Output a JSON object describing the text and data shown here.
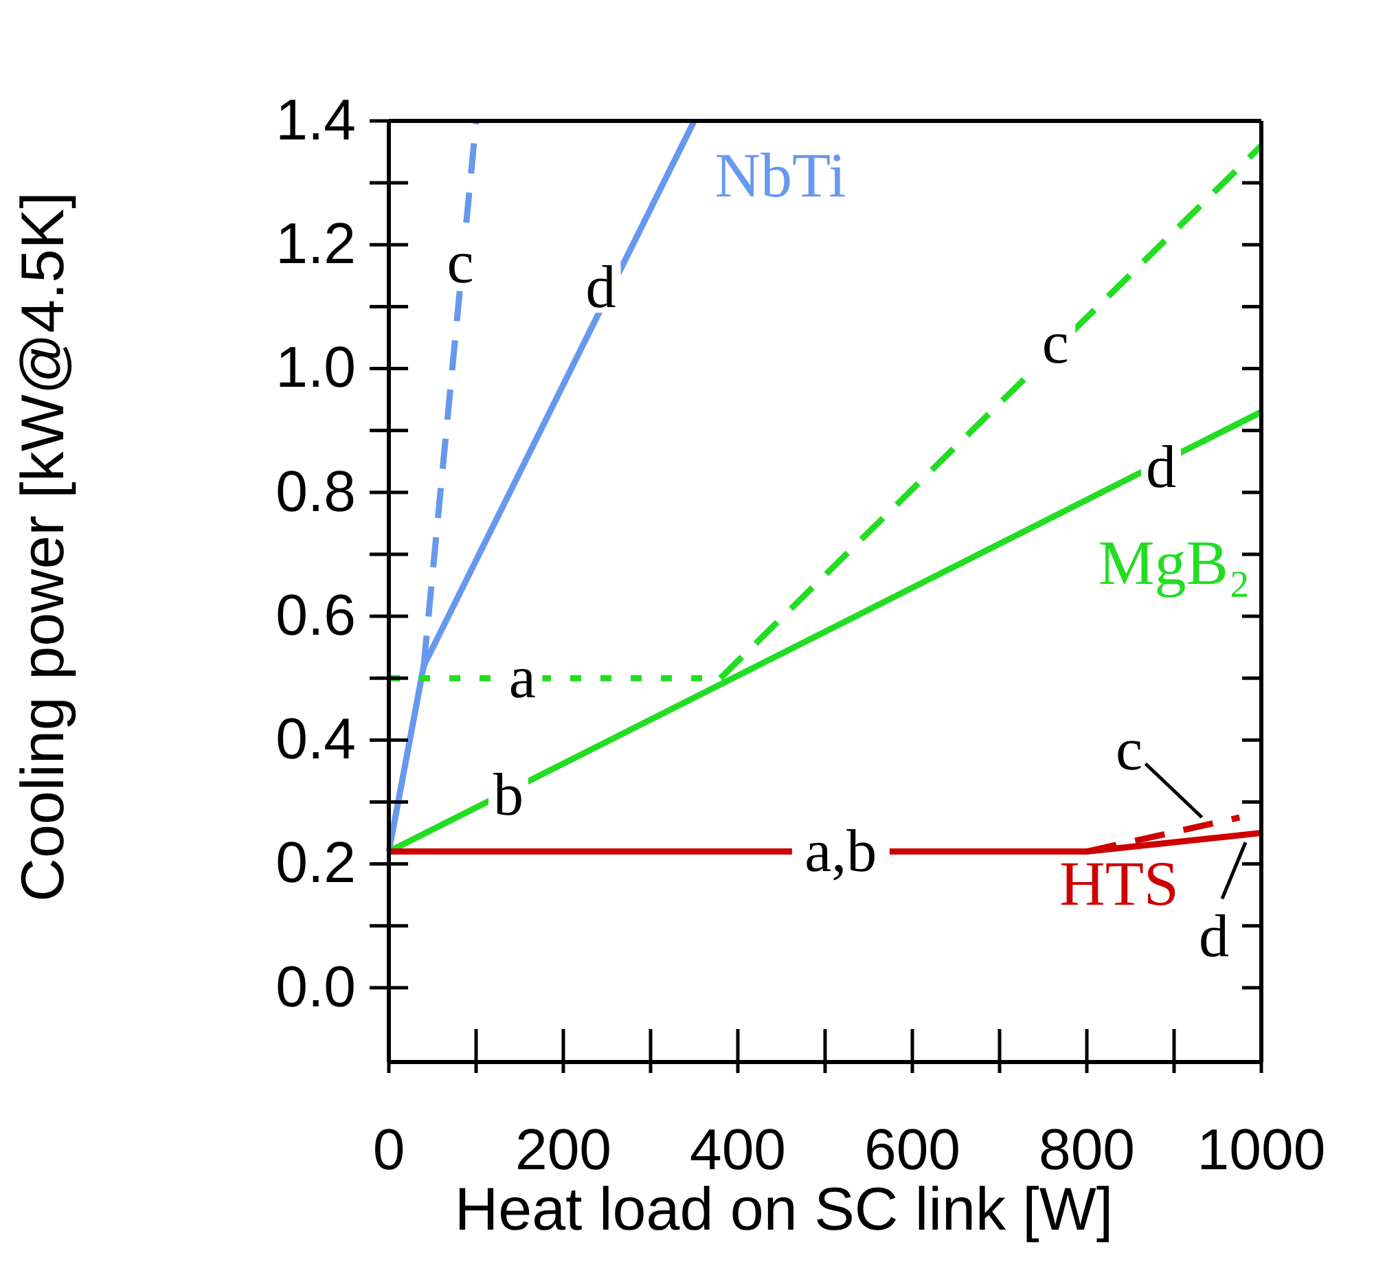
{
  "chart_data": {
    "type": "line",
    "xlabel": "Heat load on SC link [W]",
    "ylabel": "Cooling power [kW@4.5K]",
    "xlim": [
      0,
      1000
    ],
    "ylim": [
      -0.12,
      1.4
    ],
    "xticks": [
      0,
      {
        "value": 100,
        "label": null
      },
      200,
      {
        "value": 300,
        "label": null
      },
      400,
      {
        "value": 500,
        "label": null
      },
      600,
      {
        "value": 700,
        "label": null
      },
      800,
      {
        "value": 900,
        "label": null
      },
      1000
    ],
    "yticks": [
      {
        "value": 0,
        "label": "0.0"
      },
      {
        "value": 0.1,
        "label": null
      },
      {
        "value": 0.2,
        "label": "0.2"
      },
      {
        "value": 0.3,
        "label": null
      },
      {
        "value": 0.4,
        "label": "0.4"
      },
      {
        "value": 0.5,
        "label": null
      },
      {
        "value": 0.6,
        "label": "0.6"
      },
      {
        "value": 0.7,
        "label": null
      },
      {
        "value": 0.8,
        "label": "0.8"
      },
      {
        "value": 0.9,
        "label": null
      },
      {
        "value": 1.0,
        "label": "1.0"
      },
      {
        "value": 1.1,
        "label": null
      },
      {
        "value": 1.2,
        "label": "1.2"
      },
      {
        "value": 1.3,
        "label": null
      },
      {
        "value": 1.4,
        "label": "1.4"
      }
    ],
    "grid": false,
    "marker": "none",
    "series": [
      {
        "name": "NbTi",
        "color": "#6699ee",
        "line_style": "solid",
        "x": [
          0,
          40,
          350
        ],
        "values": [
          0.22,
          0.52,
          1.4
        ]
      },
      {
        "color": "#6699ee",
        "line_style": "dashed",
        "x": [
          40,
          100
        ],
        "values": [
          0.52,
          1.4
        ]
      },
      {
        "color": "#22dd22",
        "line_style": "dotted",
        "x": [
          0,
          380
        ],
        "values": [
          0.5,
          0.5
        ]
      },
      {
        "name": "MgB₂",
        "color": "#22dd22",
        "line_style": "solid",
        "x": [
          0,
          1000
        ],
        "values": [
          0.22,
          0.93
        ]
      },
      {
        "color": "#22dd22",
        "line_style": "dashed",
        "x": [
          380,
          1000
        ],
        "values": [
          0.5,
          1.36
        ]
      },
      {
        "name": "HTS",
        "color": "#cc0000",
        "line_style": "solid",
        "x": [
          0,
          800,
          1000
        ],
        "values": [
          0.22,
          0.22,
          0.25
        ]
      },
      {
        "color": "#cc0000",
        "line_style": "dashed",
        "x": [
          800,
          975
        ],
        "values": [
          0.22,
          0.275
        ]
      }
    ],
    "annotations": [
      {
        "text": "c",
        "x": 82,
        "y": 1.17
      },
      {
        "text": "d",
        "x": 243,
        "y": 1.13
      },
      {
        "text": "a",
        "x": 153,
        "y": 0.5
      },
      {
        "text": "b",
        "x": 137,
        "y": 0.31
      },
      {
        "text": "c",
        "x": 764,
        "y": 1.04
      },
      {
        "text": "d",
        "x": 885,
        "y": 0.84
      },
      {
        "text": "a,b",
        "x": 518,
        "y": 0.22
      },
      {
        "text": "c",
        "x": 935,
        "y": 0.262
      },
      {
        "text": "d",
        "x": 985,
        "y": 0.248
      }
    ]
  }
}
